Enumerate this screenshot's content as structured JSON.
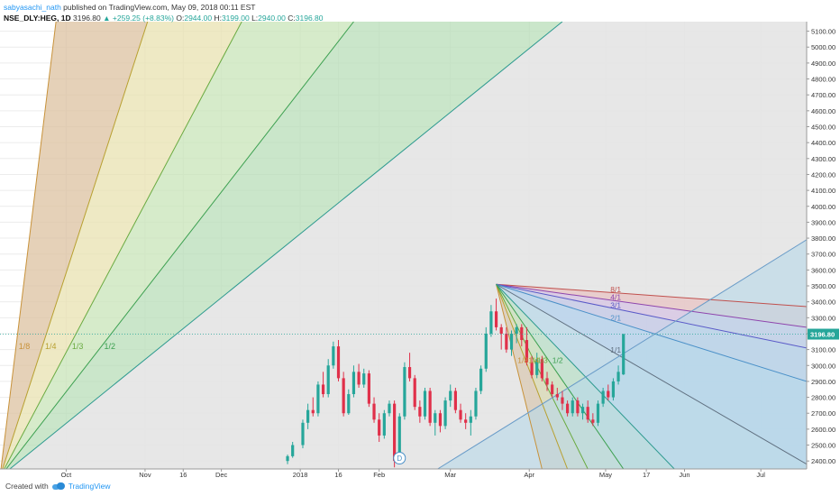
{
  "header": {
    "user": "sabyasachi_nath",
    "published": "published on TradingView.com, May 09, 2018 00:11 EST",
    "symbol": "NSE_DLY:HEG, 1D",
    "last": "3196.80",
    "change": "+259.25 (+8.83%)",
    "o_label": "O:",
    "o": "2944.00",
    "h_label": "H:",
    "h": "3199.00",
    "l_label": "L:",
    "l": "2940.00",
    "c_label": "C:",
    "c": "3196.80"
  },
  "footer": {
    "created": "Created with",
    "brand": "TradingView"
  },
  "colors": {
    "up": "#26a69a",
    "down": "#e0304a",
    "price_tag": "#26a69a"
  },
  "chart_data": {
    "type": "candlestick",
    "title": "",
    "price_axis": {
      "ticks": [
        "5100.00",
        "5000.00",
        "4900.00",
        "4800.00",
        "4700.00",
        "4600.00",
        "4500.00",
        "4400.00",
        "4300.00",
        "4200.00",
        "4100.00",
        "4000.00",
        "3900.00",
        "3800.00",
        "3700.00",
        "3600.00",
        "3500.00",
        "3400.00",
        "3300.00",
        "3200.00",
        "3100.00",
        "3000.00",
        "2900.00",
        "2800.00",
        "2700.00",
        "2600.00",
        "2500.00",
        "2400.00"
      ],
      "ylim": [
        2350,
        5160
      ],
      "last_price": "3196.80"
    },
    "time_axis": {
      "ticks": [
        {
          "label": "Oct",
          "date": "2017-10-01"
        },
        {
          "label": "Nov",
          "date": "2017-11-01"
        },
        {
          "label": "16",
          "date": "2017-11-16"
        },
        {
          "label": "Dec",
          "date": "2017-12-01"
        },
        {
          "label": "2018",
          "date": "2018-01-01"
        },
        {
          "label": "16",
          "date": "2018-01-16"
        },
        {
          "label": "Feb",
          "date": "2018-02-01"
        },
        {
          "label": "Mar",
          "date": "2018-03-01"
        },
        {
          "label": "Apr",
          "date": "2018-04-01"
        },
        {
          "label": "May",
          "date": "2018-05-01"
        },
        {
          "label": "17",
          "date": "2018-05-17"
        },
        {
          "label": "Jun",
          "date": "2018-06-01"
        },
        {
          "label": "Jul",
          "date": "2018-07-01"
        }
      ],
      "xlim": [
        "2017-09-05",
        "2018-07-19"
      ]
    },
    "series": [
      {
        "name": "HEG",
        "candles": [
          {
            "d": "2017-12-27",
            "o": 2400,
            "h": 2440,
            "l": 2380,
            "c": 2430
          },
          {
            "d": "2017-12-29",
            "o": 2430,
            "h": 2520,
            "l": 2420,
            "c": 2500
          },
          {
            "d": "2018-01-02",
            "o": 2500,
            "h": 2660,
            "l": 2480,
            "c": 2640
          },
          {
            "d": "2018-01-04",
            "o": 2640,
            "h": 2760,
            "l": 2600,
            "c": 2720
          },
          {
            "d": "2018-01-06",
            "o": 2720,
            "h": 2800,
            "l": 2680,
            "c": 2700
          },
          {
            "d": "2018-01-08",
            "o": 2700,
            "h": 2900,
            "l": 2680,
            "c": 2880
          },
          {
            "d": "2018-01-10",
            "o": 2880,
            "h": 2960,
            "l": 2800,
            "c": 2820
          },
          {
            "d": "2018-01-12",
            "o": 2820,
            "h": 3040,
            "l": 2800,
            "c": 3000
          },
          {
            "d": "2018-01-14",
            "o": 3000,
            "h": 3150,
            "l": 2980,
            "c": 3120
          },
          {
            "d": "2018-01-16",
            "o": 3120,
            "h": 3160,
            "l": 2900,
            "c": 2920
          },
          {
            "d": "2018-01-18",
            "o": 2920,
            "h": 2960,
            "l": 2680,
            "c": 2700
          },
          {
            "d": "2018-01-20",
            "o": 2700,
            "h": 2850,
            "l": 2690,
            "c": 2820
          },
          {
            "d": "2018-01-22",
            "o": 2820,
            "h": 3000,
            "l": 2800,
            "c": 2960
          },
          {
            "d": "2018-01-24",
            "o": 2960,
            "h": 3010,
            "l": 2860,
            "c": 2880
          },
          {
            "d": "2018-01-26",
            "o": 2880,
            "h": 2980,
            "l": 2860,
            "c": 2950
          },
          {
            "d": "2018-01-28",
            "o": 2950,
            "h": 2970,
            "l": 2740,
            "c": 2760
          },
          {
            "d": "2018-01-30",
            "o": 2760,
            "h": 2800,
            "l": 2640,
            "c": 2660
          },
          {
            "d": "2018-02-01",
            "o": 2660,
            "h": 2700,
            "l": 2520,
            "c": 2560
          },
          {
            "d": "2018-02-03",
            "o": 2560,
            "h": 2720,
            "l": 2540,
            "c": 2700
          },
          {
            "d": "2018-02-05",
            "o": 2700,
            "h": 2780,
            "l": 2680,
            "c": 2760
          },
          {
            "d": "2018-02-07",
            "o": 2760,
            "h": 2780,
            "l": 2360,
            "c": 2400
          },
          {
            "d": "2018-02-09",
            "o": 2400,
            "h": 2700,
            "l": 2380,
            "c": 2680
          },
          {
            "d": "2018-02-11",
            "o": 2680,
            "h": 3020,
            "l": 2660,
            "c": 2990
          },
          {
            "d": "2018-02-13",
            "o": 2990,
            "h": 3080,
            "l": 2900,
            "c": 2920
          },
          {
            "d": "2018-02-15",
            "o": 2920,
            "h": 2940,
            "l": 2720,
            "c": 2740
          },
          {
            "d": "2018-02-17",
            "o": 2740,
            "h": 2780,
            "l": 2640,
            "c": 2680
          },
          {
            "d": "2018-02-19",
            "o": 2680,
            "h": 2860,
            "l": 2660,
            "c": 2840
          },
          {
            "d": "2018-02-21",
            "o": 2840,
            "h": 2860,
            "l": 2620,
            "c": 2640
          },
          {
            "d": "2018-02-23",
            "o": 2640,
            "h": 2720,
            "l": 2560,
            "c": 2700
          },
          {
            "d": "2018-02-25",
            "o": 2700,
            "h": 2720,
            "l": 2580,
            "c": 2620
          },
          {
            "d": "2018-02-27",
            "o": 2620,
            "h": 2800,
            "l": 2600,
            "c": 2780
          },
          {
            "d": "2018-03-01",
            "o": 2780,
            "h": 2880,
            "l": 2740,
            "c": 2840
          },
          {
            "d": "2018-03-03",
            "o": 2840,
            "h": 2860,
            "l": 2700,
            "c": 2720
          },
          {
            "d": "2018-03-05",
            "o": 2720,
            "h": 2760,
            "l": 2640,
            "c": 2660
          },
          {
            "d": "2018-03-07",
            "o": 2660,
            "h": 2700,
            "l": 2600,
            "c": 2640
          },
          {
            "d": "2018-03-09",
            "o": 2640,
            "h": 2720,
            "l": 2560,
            "c": 2680
          },
          {
            "d": "2018-03-11",
            "o": 2680,
            "h": 2860,
            "l": 2660,
            "c": 2840
          },
          {
            "d": "2018-03-13",
            "o": 2840,
            "h": 3000,
            "l": 2820,
            "c": 2980
          },
          {
            "d": "2018-03-15",
            "o": 2980,
            "h": 3240,
            "l": 2960,
            "c": 3200
          },
          {
            "d": "2018-03-17",
            "o": 3200,
            "h": 3380,
            "l": 3180,
            "c": 3340
          },
          {
            "d": "2018-03-19",
            "o": 3340,
            "h": 3420,
            "l": 3220,
            "c": 3240
          },
          {
            "d": "2018-03-21",
            "o": 3240,
            "h": 3260,
            "l": 3100,
            "c": 3200
          },
          {
            "d": "2018-03-23",
            "o": 3200,
            "h": 3240,
            "l": 3080,
            "c": 3100
          },
          {
            "d": "2018-03-25",
            "o": 3100,
            "h": 3220,
            "l": 3060,
            "c": 3200
          },
          {
            "d": "2018-03-27",
            "o": 3200,
            "h": 3260,
            "l": 3140,
            "c": 3240
          },
          {
            "d": "2018-03-29",
            "o": 3240,
            "h": 3260,
            "l": 3120,
            "c": 3160
          },
          {
            "d": "2018-03-31",
            "o": 3160,
            "h": 3240,
            "l": 3000,
            "c": 3020
          },
          {
            "d": "2018-04-02",
            "o": 3020,
            "h": 3060,
            "l": 2920,
            "c": 2940
          },
          {
            "d": "2018-04-04",
            "o": 2940,
            "h": 3080,
            "l": 2920,
            "c": 3040
          },
          {
            "d": "2018-04-06",
            "o": 3040,
            "h": 3060,
            "l": 2900,
            "c": 2920
          },
          {
            "d": "2018-04-08",
            "o": 2920,
            "h": 2960,
            "l": 2840,
            "c": 2880
          },
          {
            "d": "2018-04-10",
            "o": 2880,
            "h": 2900,
            "l": 2800,
            "c": 2820
          },
          {
            "d": "2018-04-12",
            "o": 2820,
            "h": 2860,
            "l": 2780,
            "c": 2800
          },
          {
            "d": "2018-04-14",
            "o": 2800,
            "h": 2840,
            "l": 2720,
            "c": 2760
          },
          {
            "d": "2018-04-16",
            "o": 2760,
            "h": 2780,
            "l": 2680,
            "c": 2700
          },
          {
            "d": "2018-04-18",
            "o": 2700,
            "h": 2800,
            "l": 2680,
            "c": 2780
          },
          {
            "d": "2018-04-20",
            "o": 2780,
            "h": 2800,
            "l": 2680,
            "c": 2700
          },
          {
            "d": "2018-04-22",
            "o": 2700,
            "h": 2760,
            "l": 2660,
            "c": 2740
          },
          {
            "d": "2018-04-24",
            "o": 2740,
            "h": 2780,
            "l": 2640,
            "c": 2660
          },
          {
            "d": "2018-04-26",
            "o": 2660,
            "h": 2700,
            "l": 2620,
            "c": 2640
          },
          {
            "d": "2018-04-28",
            "o": 2640,
            "h": 2780,
            "l": 2620,
            "c": 2760
          },
          {
            "d": "2018-04-30",
            "o": 2760,
            "h": 2860,
            "l": 2740,
            "c": 2840
          },
          {
            "d": "2018-05-02",
            "o": 2840,
            "h": 2880,
            "l": 2780,
            "c": 2800
          },
          {
            "d": "2018-05-04",
            "o": 2800,
            "h": 2920,
            "l": 2780,
            "c": 2900
          },
          {
            "d": "2018-05-06",
            "o": 2900,
            "h": 3000,
            "l": 2880,
            "c": 2960
          },
          {
            "d": "2018-05-08",
            "o": 2944,
            "h": 3199,
            "l": 2940,
            "c": 3196.8
          }
        ]
      }
    ],
    "gann_fan_low": {
      "origin": {
        "d": "2017-09-05",
        "p": 2300
      },
      "fills": [
        "#dcc2a0",
        "#e8e2b0",
        "#c8e4b8",
        "#b8deb8"
      ],
      "lines": [
        {
          "label": "1/8",
          "color": "#c8923a",
          "to": {
            "d": "2017-09-27",
            "p": 5160
          }
        },
        {
          "label": "1/4",
          "color": "#b8a030",
          "to": {
            "d": "2017-11-02",
            "p": 5160
          }
        },
        {
          "label": "1/3",
          "color": "#6aaa40",
          "to": {
            "d": "2017-12-09",
            "p": 5160
          }
        },
        {
          "label": "1/2",
          "color": "#3ca050",
          "to": {
            "d": "2018-01-22",
            "p": 5160
          }
        },
        {
          "label": "",
          "color": "#2e9a90",
          "to": {
            "d": "2018-04-14",
            "p": 5160
          }
        }
      ],
      "label_price": 3120
    },
    "gann_fan_high": {
      "origin": {
        "d": "2018-03-19",
        "p": 3510
      },
      "lines_up": [
        {
          "label": "8/1",
          "color": "#c0504d",
          "to": {
            "d": "2018-07-19",
            "p": 3370
          }
        },
        {
          "label": "4/1",
          "color": "#8e44ad",
          "to": {
            "d": "2018-07-19",
            "p": 3240
          }
        },
        {
          "label": "3/1",
          "color": "#5a5ac8",
          "to": {
            "d": "2018-07-19",
            "p": 3110
          }
        },
        {
          "label": "2/1",
          "color": "#4a90c8",
          "to": {
            "d": "2018-07-19",
            "p": 2900
          }
        },
        {
          "label": "1/1",
          "color": "#607080",
          "to": {
            "d": "2018-07-19",
            "p": 2380
          }
        }
      ],
      "lines_down": [
        {
          "label": "1/8",
          "color": "#c8923a",
          "to": {
            "d": "2018-04-06",
            "p": 2350
          }
        },
        {
          "label": "1/4",
          "color": "#b8a030",
          "to": {
            "d": "2018-04-16",
            "p": 2350
          }
        },
        {
          "label": "1/3",
          "color": "#6aaa40",
          "to": {
            "d": "2018-04-24",
            "p": 2350
          }
        },
        {
          "label": "1/2",
          "color": "#3ca050",
          "to": {
            "d": "2018-05-08",
            "p": 2350
          }
        },
        {
          "label": "",
          "color": "#2e9a90",
          "to": {
            "d": "2018-05-28",
            "p": 2350
          }
        }
      ]
    },
    "rising_line": {
      "from": {
        "d": "2018-02-24",
        "p": 2350
      },
      "to": {
        "d": "2018-07-19",
        "p": 3790
      },
      "color": "#6a9cc8"
    }
  },
  "marker": {
    "letter": "D"
  }
}
